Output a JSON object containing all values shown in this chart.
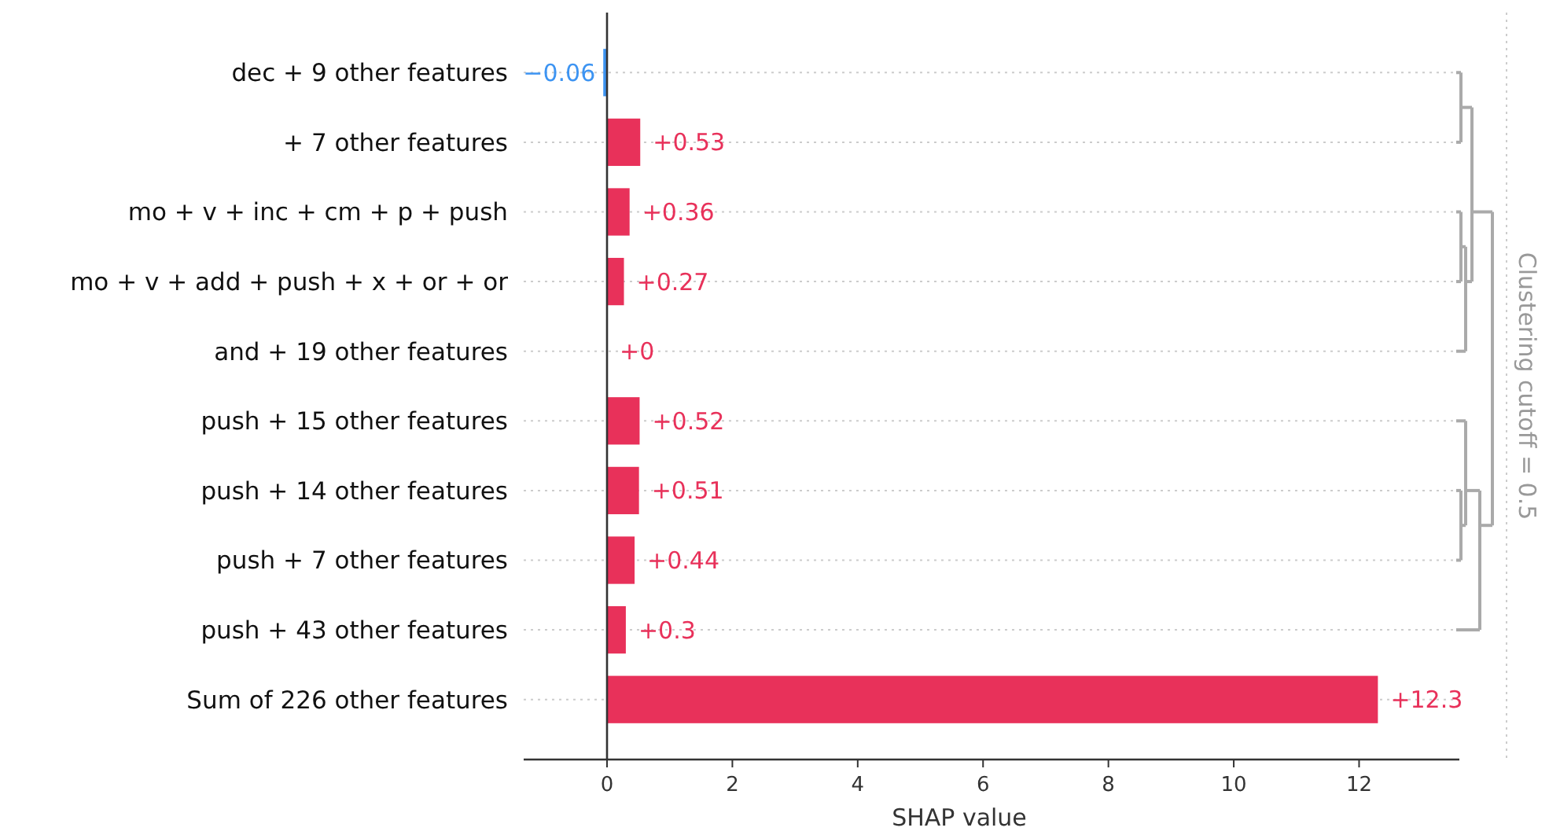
{
  "chart_data": {
    "type": "bar",
    "orientation": "horizontal",
    "xlabel": "SHAP value",
    "categories": [
      "dec + 9 other features",
      "+ 7 other features",
      "mo + v + inc + cm + p + push",
      "mo + v + add + push + x + or + or",
      "and + 19 other features",
      "push + 15 other features",
      "push + 14 other features",
      "push + 7 other features",
      "push + 43 other features",
      "Sum of 226 other features"
    ],
    "values": [
      -0.06,
      0.53,
      0.36,
      0.27,
      0,
      0.52,
      0.51,
      0.44,
      0.3,
      12.3
    ],
    "colors": [
      "#3d94f2",
      "#e8315a",
      "#e8315a",
      "#e8315a",
      "#e8315a",
      "#e8315a",
      "#e8315a",
      "#e8315a",
      "#e8315a",
      "#e8315a"
    ],
    "value_labels": [
      "−0.06",
      "+0.53",
      "+0.36",
      "+0.27",
      "+0",
      "+0.52",
      "+0.51",
      "+0.44",
      "+0.3",
      "+12.3"
    ],
    "xlim": [
      -1.33,
      13.6
    ],
    "xticks": [
      0,
      2,
      4,
      6,
      8,
      10,
      12
    ],
    "grid": "y",
    "annotations": [
      "Clustering cutoff = 0.5"
    ]
  }
}
